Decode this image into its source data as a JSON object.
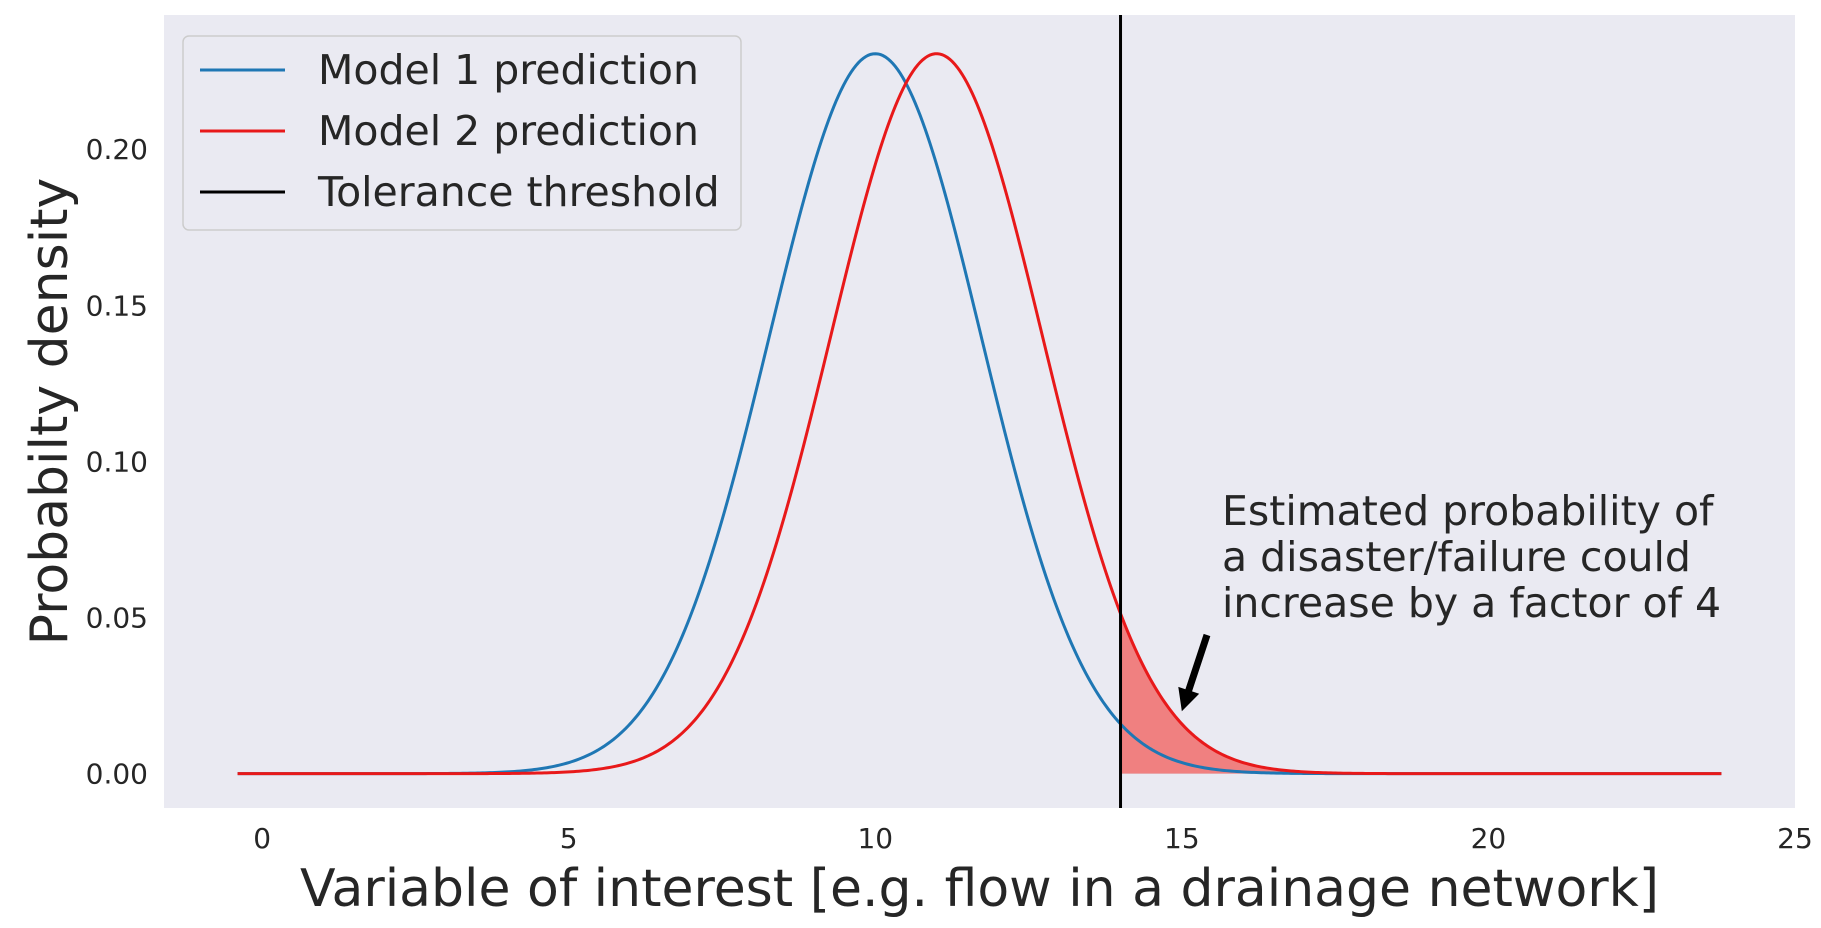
{
  "chart_data": {
    "type": "line",
    "title": "",
    "xlabel": "Variable of interest [e.g. flow in a drainage network]",
    "ylabel": "Probabilty density",
    "xlim": [
      -1.6,
      25
    ],
    "ylim": [
      -0.011,
      0.243
    ],
    "xticks": [
      0,
      5,
      10,
      15,
      20,
      25
    ],
    "yticks": [
      0.0,
      0.05,
      0.1,
      0.15,
      0.2
    ],
    "xtick_labels": [
      "0",
      "5",
      "10",
      "15",
      "20",
      "25"
    ],
    "ytick_labels": [
      "0.00",
      "0.05",
      "0.10",
      "0.15",
      "0.20"
    ],
    "grid": false,
    "background": "#eaeaf2",
    "legend_position": "top-left",
    "x_range": [
      -0.4,
      23.8
    ],
    "series": [
      {
        "name": "Model 1 prediction",
        "distribution": "normal",
        "mean": 10,
        "std": 1.73,
        "color": "#1f77b4"
      },
      {
        "name": "Model 2 prediction",
        "distribution": "normal",
        "mean": 11,
        "std": 1.73,
        "color": "#e8191a"
      }
    ],
    "threshold": {
      "name": "Tolerance threshold",
      "x": 14,
      "color": "#000000"
    },
    "shaded_tails": [
      {
        "series": "Model 1 prediction",
        "from_x": 14,
        "color": "#add8e6"
      },
      {
        "series": "Model 2 prediction",
        "from_x": 14,
        "color": "#f08080"
      }
    ],
    "annotation": {
      "lines": [
        "Estimated probability of",
        "a disaster/failure could",
        "increase by a factor of 4"
      ],
      "arrow_to": [
        15,
        0.02
      ]
    }
  }
}
